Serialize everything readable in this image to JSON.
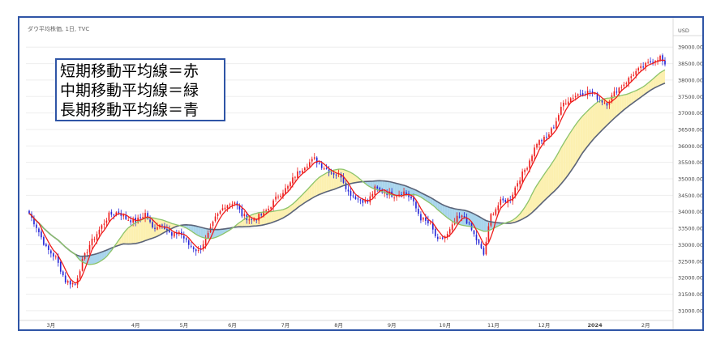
{
  "chart_title": "ダウ平均株価, 1日, TVC",
  "legend": {
    "lines": [
      "短期移動平均線＝赤",
      "中期移動平均線＝緑",
      "長期移動平均線＝青"
    ]
  },
  "colors": {
    "up": "#ee1c1c",
    "down": "#2424d8",
    "short_ma": "#ee1c1c",
    "mid_ma": "#8cc46a",
    "long_ma": "#5a6378",
    "fill_bull": "#fcf0b0",
    "fill_bear": "#a8d4ec",
    "frame": "#2f55a6"
  },
  "chart_data": {
    "type": "candlestick",
    "currency": "USD",
    "ylim": [
      30800,
      39300
    ],
    "yticks": [
      "39000.00",
      "38500.00",
      "38000.00",
      "37500.00",
      "37000.00",
      "36500.00",
      "36000.00",
      "35500.00",
      "35000.00",
      "34500.00",
      "34000.00",
      "33500.00",
      "33000.00",
      "32500.00",
      "32000.00",
      "31500.00",
      "31000.00"
    ],
    "xticks": [
      "3月",
      "4月",
      "5月",
      "6月",
      "7月",
      "8月",
      "9月",
      "10月",
      "11月",
      "12月",
      "2024",
      "2月"
    ],
    "anchors": [
      [
        0,
        33950
      ],
      [
        3,
        33550
      ],
      [
        7,
        32900
      ],
      [
        11,
        32600
      ],
      [
        15,
        31900
      ],
      [
        19,
        31800
      ],
      [
        22,
        32500
      ],
      [
        25,
        33000
      ],
      [
        29,
        33450
      ],
      [
        33,
        33900
      ],
      [
        37,
        34000
      ],
      [
        40,
        33800
      ],
      [
        44,
        33700
      ],
      [
        48,
        33950
      ],
      [
        51,
        33500
      ],
      [
        55,
        33650
      ],
      [
        59,
        33250
      ],
      [
        62,
        33400
      ],
      [
        66,
        33000
      ],
      [
        70,
        32800
      ],
      [
        74,
        33300
      ],
      [
        77,
        33800
      ],
      [
        81,
        34200
      ],
      [
        85,
        34300
      ],
      [
        88,
        33900
      ],
      [
        92,
        33750
      ],
      [
        96,
        33900
      ],
      [
        99,
        34100
      ],
      [
        103,
        34500
      ],
      [
        107,
        34750
      ],
      [
        110,
        35100
      ],
      [
        114,
        35400
      ],
      [
        118,
        35600
      ],
      [
        121,
        35400
      ],
      [
        125,
        35200
      ],
      [
        129,
        35100
      ],
      [
        132,
        34600
      ],
      [
        136,
        34400
      ],
      [
        140,
        34300
      ],
      [
        143,
        34700
      ],
      [
        147,
        34600
      ],
      [
        151,
        34500
      ],
      [
        155,
        34600
      ],
      [
        158,
        34400
      ],
      [
        162,
        33800
      ],
      [
        166,
        33600
      ],
      [
        169,
        33100
      ],
      [
        173,
        33300
      ],
      [
        177,
        33800
      ],
      [
        180,
        33850
      ],
      [
        184,
        33300
      ],
      [
        188,
        32700
      ],
      [
        191,
        33900
      ],
      [
        195,
        34300
      ],
      [
        199,
        34400
      ],
      [
        202,
        34900
      ],
      [
        206,
        35400
      ],
      [
        210,
        36100
      ],
      [
        214,
        36250
      ],
      [
        217,
        36600
      ],
      [
        221,
        37300
      ],
      [
        225,
        37500
      ],
      [
        228,
        37600
      ],
      [
        232,
        37650
      ],
      [
        236,
        37400
      ],
      [
        239,
        37300
      ],
      [
        243,
        37700
      ],
      [
        247,
        37950
      ],
      [
        250,
        38200
      ],
      [
        254,
        38400
      ],
      [
        258,
        38600
      ],
      [
        261,
        38700
      ],
      [
        263,
        38400
      ]
    ],
    "months_first_index": [
      9,
      44,
      64,
      84,
      106,
      128,
      150,
      172,
      192,
      213,
      234,
      255
    ]
  }
}
